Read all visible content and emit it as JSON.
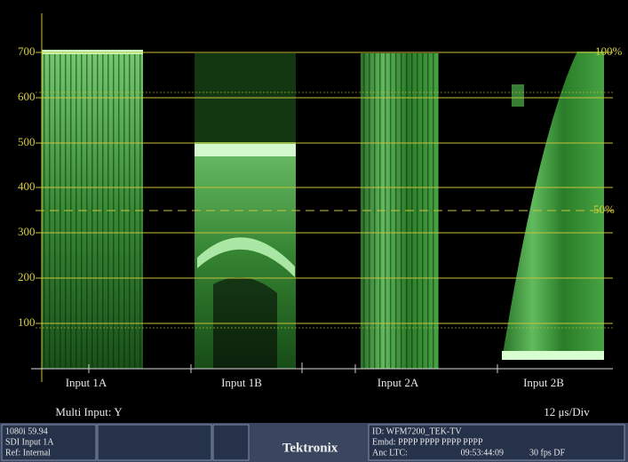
{
  "graticule": {
    "labels": [
      "700",
      "600",
      "500",
      "400",
      "300",
      "200",
      "100"
    ],
    "percent_labels": [
      "100%",
      "50%"
    ]
  },
  "channels": [
    "Input 1A",
    "Input 1B",
    "Input 2A",
    "Input 2B"
  ],
  "display": {
    "mode": "Multi Input: Y",
    "sweep": "12 μs/Div"
  },
  "status": {
    "format": "1080i 59.94",
    "input": "SDI Input 1A",
    "ref": "Ref: Internal",
    "brand": "Tektronix",
    "id": "ID: WFM7200_TEK-TV",
    "embd": "Embd: PPPP PPPP PPPP PPPP",
    "anc": "Anc LTC:",
    "timecode": "09:53:44:09",
    "rate": "30 fps DF"
  }
}
